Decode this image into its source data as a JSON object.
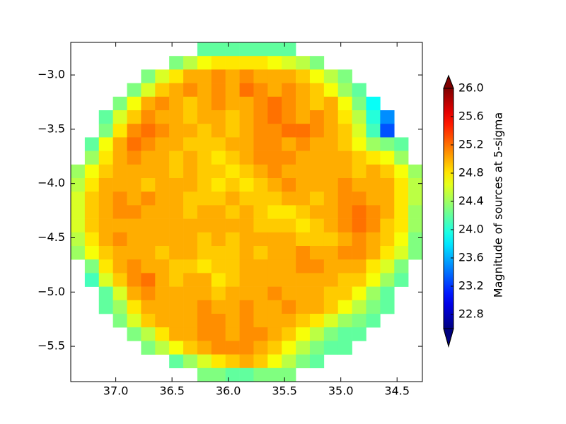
{
  "chart_data": {
    "type": "heatmap",
    "colormap": "jet",
    "clim": [
      22.6,
      26.0
    ],
    "x_edges": [
      37.4,
      37.275,
      37.15,
      37.025,
      36.9,
      36.775,
      36.65,
      36.525,
      36.4,
      36.275,
      36.15,
      36.025,
      35.9,
      35.775,
      35.65,
      35.525,
      35.4,
      35.275,
      35.15,
      35.025,
      34.9,
      34.775,
      34.65,
      34.525,
      34.4,
      34.275
    ],
    "y_edges": [
      -2.7,
      -2.825,
      -2.95,
      -3.075,
      -3.2,
      -3.325,
      -3.45,
      -3.575,
      -3.7,
      -3.825,
      -3.95,
      -4.075,
      -4.2,
      -4.325,
      -4.45,
      -4.575,
      -4.7,
      -4.825,
      -4.95,
      -5.075,
      -5.2,
      -5.325,
      -5.45,
      -5.575,
      -5.7,
      -5.825
    ],
    "xlim": [
      37.4,
      34.275
    ],
    "ylim": [
      -5.825,
      -2.7
    ],
    "xticks": [
      {
        "value": 37,
        "label": "37.0"
      },
      36.5,
      {
        "value": 36,
        "label": "36.0"
      },
      35.5,
      {
        "value": 35,
        "label": "35.0"
      },
      34.5
    ],
    "yticks": [
      {
        "value": -3,
        "label": "−3.0"
      },
      {
        "value": -3.5,
        "label": "−3.5"
      },
      {
        "value": -4,
        "label": "−4.0"
      },
      {
        "value": -4.5,
        "label": "−4.5"
      },
      {
        "value": -5,
        "label": "−5.0"
      },
      {
        "value": -5.5,
        "label": "−5.5"
      }
    ],
    "colorbar": {
      "label": "Magnitude of sources at 5-sigma",
      "ticks": [
        {
          "value": 26,
          "label": "26.0"
        },
        25.6,
        25.2,
        24.8,
        24.4,
        {
          "value": 24,
          "label": "24.0"
        },
        23.6,
        23.2,
        22.8
      ],
      "extend": "both"
    },
    "values": [
      [
        null,
        null,
        null,
        null,
        null,
        null,
        null,
        null,
        null,
        24.2,
        24.2,
        24.2,
        24.2,
        24.2,
        24.2,
        24.2,
        null,
        null,
        null,
        null,
        null,
        null,
        null,
        null,
        null
      ],
      [
        null,
        null,
        null,
        null,
        null,
        null,
        null,
        24.3,
        24.5,
        24.7,
        24.8,
        24.8,
        24.8,
        24.8,
        24.7,
        24.6,
        24.5,
        24.3,
        null,
        null,
        null,
        null,
        null,
        null,
        null
      ],
      [
        null,
        null,
        null,
        null,
        null,
        24.3,
        24.6,
        24.8,
        25.0,
        25.0,
        25.1,
        25.0,
        25.1,
        25.0,
        25.0,
        25.0,
        24.9,
        24.7,
        24.5,
        24.3,
        null,
        null,
        null,
        null,
        null
      ],
      [
        null,
        null,
        null,
        null,
        24.3,
        24.6,
        24.9,
        25.0,
        25.1,
        25.0,
        25.1,
        25.0,
        25.2,
        25.1,
        25.0,
        25.1,
        25.0,
        24.9,
        24.7,
        24.4,
        24.2,
        null,
        null,
        null,
        null
      ],
      [
        null,
        null,
        null,
        24.3,
        24.7,
        25.0,
        25.1,
        25.0,
        24.9,
        25.0,
        25.1,
        25.0,
        25.0,
        25.1,
        25.2,
        25.1,
        25.0,
        24.9,
        25.0,
        24.7,
        24.3,
        23.9,
        null,
        null,
        null
      ],
      [
        null,
        null,
        24.2,
        24.6,
        24.9,
        25.1,
        25.0,
        25.0,
        24.9,
        25.0,
        25.0,
        24.9,
        25.0,
        25.1,
        25.2,
        25.1,
        25.0,
        25.1,
        25.0,
        24.8,
        24.5,
        24.0,
        23.5,
        null,
        null
      ],
      [
        null,
        null,
        24.3,
        24.8,
        25.1,
        25.2,
        25.1,
        25.0,
        25.0,
        24.9,
        25.0,
        24.9,
        25.0,
        25.1,
        25.1,
        25.2,
        25.2,
        25.1,
        25.0,
        24.9,
        24.6,
        24.1,
        23.3,
        null,
        null
      ],
      [
        null,
        24.2,
        24.7,
        25.0,
        25.2,
        25.1,
        25.0,
        25.0,
        24.9,
        24.9,
        24.9,
        25.0,
        25.0,
        25.1,
        25.1,
        25.0,
        25.1,
        25.0,
        25.0,
        24.9,
        24.7,
        24.4,
        24.3,
        24.2,
        null
      ],
      [
        null,
        24.4,
        24.8,
        25.0,
        25.1,
        25.0,
        25.0,
        24.9,
        25.0,
        24.9,
        24.8,
        24.9,
        25.0,
        25.1,
        25.1,
        25.1,
        25.0,
        25.0,
        25.0,
        25.0,
        24.9,
        24.8,
        24.7,
        24.4,
        null
      ],
      [
        24.4,
        24.7,
        24.9,
        25.0,
        25.0,
        25.0,
        25.0,
        24.9,
        25.0,
        24.9,
        24.9,
        24.8,
        24.9,
        25.0,
        25.1,
        25.0,
        25.0,
        25.0,
        25.0,
        25.0,
        24.9,
        25.0,
        24.9,
        24.7,
        24.4
      ],
      [
        24.5,
        24.8,
        25.0,
        25.0,
        25.0,
        24.9,
        25.0,
        25.0,
        25.0,
        24.9,
        24.8,
        24.9,
        24.8,
        24.9,
        25.0,
        25.1,
        25.0,
        25.0,
        25.0,
        25.1,
        25.0,
        25.0,
        25.0,
        24.8,
        24.5
      ],
      [
        24.6,
        24.9,
        25.0,
        25.1,
        25.0,
        25.1,
        25.0,
        25.0,
        24.9,
        24.9,
        24.9,
        25.0,
        24.9,
        24.9,
        24.9,
        25.0,
        25.0,
        24.9,
        25.0,
        25.1,
        25.1,
        25.0,
        25.0,
        24.8,
        24.5
      ],
      [
        24.6,
        24.9,
        25.0,
        25.1,
        25.1,
        25.0,
        25.0,
        25.0,
        24.9,
        25.0,
        25.0,
        24.9,
        25.0,
        24.9,
        24.8,
        24.8,
        24.9,
        25.0,
        25.0,
        25.1,
        25.2,
        25.1,
        25.0,
        24.8,
        24.4
      ],
      [
        24.6,
        24.9,
        25.0,
        25.0,
        25.0,
        25.0,
        25.0,
        25.0,
        25.0,
        25.0,
        25.0,
        25.0,
        25.0,
        24.9,
        24.9,
        24.9,
        24.8,
        24.9,
        25.0,
        25.1,
        25.2,
        25.1,
        24.9,
        24.8,
        24.4
      ],
      [
        24.5,
        24.8,
        25.0,
        25.1,
        25.0,
        25.0,
        25.0,
        25.0,
        25.0,
        24.9,
        25.0,
        24.9,
        25.0,
        25.0,
        25.0,
        25.0,
        24.9,
        24.9,
        24.9,
        25.0,
        25.1,
        25.0,
        24.9,
        24.7,
        24.3
      ],
      [
        24.4,
        24.7,
        24.9,
        25.0,
        25.0,
        25.0,
        24.9,
        25.0,
        25.0,
        24.9,
        24.9,
        24.9,
        25.0,
        24.9,
        25.0,
        25.0,
        25.1,
        25.0,
        25.0,
        25.1,
        25.1,
        25.0,
        24.8,
        24.6,
        24.3
      ],
      [
        null,
        24.3,
        24.8,
        25.0,
        25.1,
        25.0,
        25.0,
        24.9,
        24.9,
        24.8,
        24.9,
        24.9,
        25.0,
        25.0,
        25.0,
        25.0,
        25.1,
        25.1,
        25.0,
        25.0,
        25.0,
        24.8,
        24.6,
        24.3,
        null
      ],
      [
        null,
        24.1,
        24.6,
        24.9,
        25.1,
        25.2,
        25.0,
        24.9,
        25.0,
        25.0,
        24.8,
        24.9,
        25.0,
        25.0,
        25.0,
        25.0,
        25.0,
        25.0,
        25.0,
        24.9,
        24.9,
        24.7,
        24.4,
        24.2,
        null
      ],
      [
        null,
        null,
        24.2,
        24.6,
        25.0,
        25.1,
        25.0,
        25.0,
        25.0,
        25.0,
        24.9,
        25.0,
        25.0,
        25.0,
        25.1,
        25.0,
        25.0,
        25.0,
        24.9,
        24.9,
        24.7,
        24.4,
        24.2,
        null,
        null
      ],
      [
        null,
        null,
        24.2,
        24.4,
        24.8,
        25.0,
        25.0,
        25.0,
        25.0,
        25.1,
        25.0,
        25.0,
        25.1,
        25.0,
        25.0,
        25.1,
        25.0,
        25.0,
        24.9,
        24.7,
        24.5,
        24.3,
        24.2,
        null,
        null
      ],
      [
        null,
        null,
        null,
        24.3,
        24.6,
        24.9,
        25.0,
        25.0,
        25.0,
        25.1,
        25.1,
        25.0,
        25.1,
        25.0,
        25.0,
        25.0,
        24.9,
        24.8,
        24.6,
        24.4,
        24.3,
        24.2,
        null,
        null,
        null
      ],
      [
        null,
        null,
        null,
        null,
        24.3,
        24.5,
        24.8,
        25.0,
        25.0,
        25.1,
        25.1,
        25.0,
        25.1,
        25.1,
        25.0,
        24.9,
        24.7,
        24.5,
        24.3,
        24.2,
        24.2,
        null,
        null,
        null,
        null
      ],
      [
        null,
        null,
        null,
        null,
        null,
        24.3,
        24.5,
        24.7,
        24.9,
        25.0,
        25.1,
        25.1,
        25.1,
        25.0,
        24.9,
        24.7,
        24.5,
        24.3,
        24.2,
        24.2,
        null,
        null,
        null,
        null,
        null
      ],
      [
        null,
        null,
        null,
        null,
        null,
        null,
        null,
        24.2,
        24.4,
        24.6,
        24.8,
        24.9,
        25.0,
        24.9,
        24.7,
        24.5,
        24.3,
        24.2,
        null,
        null,
        null,
        null,
        null,
        null,
        null
      ],
      [
        null,
        null,
        null,
        null,
        null,
        null,
        null,
        null,
        null,
        24.3,
        24.3,
        24.2,
        24.2,
        24.3,
        24.3,
        24.3,
        null,
        null,
        null,
        null,
        null,
        null,
        null,
        null,
        null
      ]
    ]
  }
}
